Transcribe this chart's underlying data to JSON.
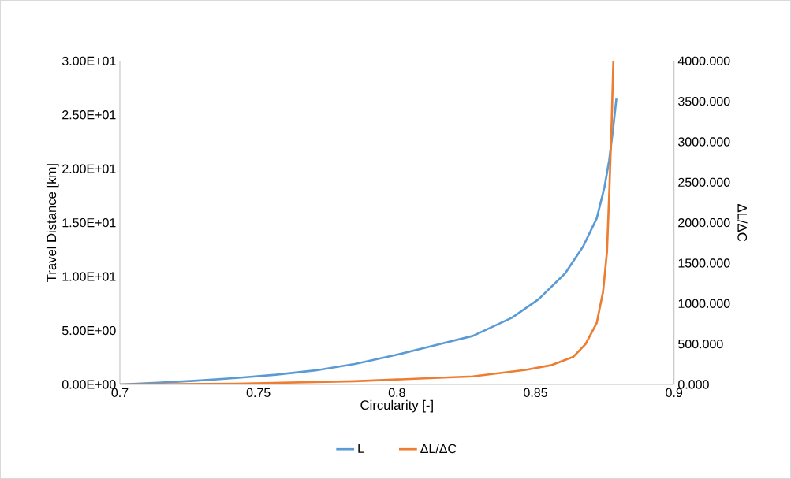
{
  "chart_data": {
    "type": "line",
    "xlabel": "Circularity [-]",
    "ylabel": "Travel Distance [km]",
    "y2label": "ΔL/ΔC",
    "series": [
      {
        "name": "L",
        "color": "#5b9bd5",
        "x": [
          0.7,
          0.7137,
          0.7279,
          0.742,
          0.7563,
          0.7706,
          0.7848,
          0.799,
          0.8132,
          0.8274,
          0.8416,
          0.8511,
          0.8607,
          0.8672,
          0.8721,
          0.8749,
          0.8766,
          0.878,
          0.8792
        ],
        "values": [
          0,
          0.15,
          0.36,
          0.6,
          0.9,
          1.3,
          1.9,
          2.7,
          3.6,
          4.5,
          6.2,
          7.9,
          10.3,
          12.8,
          15.4,
          18.3,
          20.8,
          23.7,
          26.5
        ]
      },
      {
        "name": "ΔL/ΔC",
        "color": "#ed7d31",
        "axis": "y2",
        "x": [
          0.7,
          0.742,
          0.7848,
          0.8274,
          0.8465,
          0.8559,
          0.8636,
          0.8681,
          0.8721,
          0.8744,
          0.8758,
          0.8767,
          0.8775,
          0.8781
        ],
        "values": [
          0,
          10,
          40,
          100,
          180,
          240,
          340,
          500,
          760,
          1150,
          1640,
          2440,
          3260,
          4000
        ]
      }
    ],
    "xlim": [
      0.7,
      0.9
    ],
    "xticks": [
      0.7,
      0.75,
      0.8,
      0.85,
      0.9
    ],
    "ylim": [
      0,
      30
    ],
    "yticks": [
      {
        "value": 0,
        "label": "0.00E+00"
      },
      {
        "value": 5,
        "label": "5.00E+00"
      },
      {
        "value": 10,
        "label": "1.00E+01"
      },
      {
        "value": 15,
        "label": "1.50E+01"
      },
      {
        "value": 20,
        "label": "2.00E+01"
      },
      {
        "value": 25,
        "label": "2.50E+01"
      },
      {
        "value": 30,
        "label": "3.00E+01"
      }
    ],
    "y2lim": [
      0,
      4000
    ],
    "y2ticks": [
      {
        "value": 0,
        "label": "0.000"
      },
      {
        "value": 500,
        "label": "500.000"
      },
      {
        "value": 1000,
        "label": "1000.000"
      },
      {
        "value": 1500,
        "label": "1500.000"
      },
      {
        "value": 2000,
        "label": "2000.000"
      },
      {
        "value": 2500,
        "label": "2500.000"
      },
      {
        "value": 3000,
        "label": "3000.000"
      },
      {
        "value": 3500,
        "label": "3500.000"
      },
      {
        "value": 4000,
        "label": "4000.000"
      }
    ],
    "grid": false,
    "legend": "bottom",
    "marker": "none",
    "line_style": "solid"
  }
}
